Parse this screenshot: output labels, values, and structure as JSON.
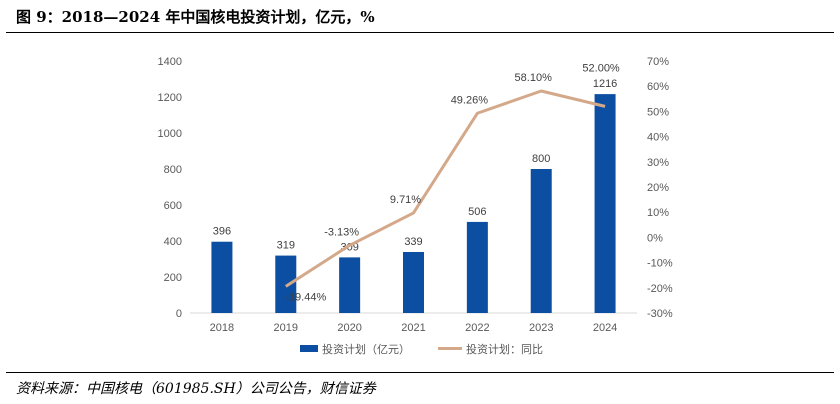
{
  "header": {
    "title": "图 9：2018—2024 年中国核电投资计划，亿元，%"
  },
  "footer": {
    "source": "资料来源：中国核电（601985.SH）公司公告，财信证券"
  },
  "chart_data": {
    "type": "bar",
    "categories": [
      "2018",
      "2019",
      "2020",
      "2021",
      "2022",
      "2023",
      "2024"
    ],
    "series": [
      {
        "name": "投资计划（亿元）",
        "type": "bar",
        "axis": "left",
        "values": [
          396,
          319,
          309,
          339,
          506,
          800,
          1216
        ],
        "labels": [
          "396",
          "319",
          "309",
          "339",
          "506",
          "800",
          "1216"
        ]
      },
      {
        "name": "投资计划：同比",
        "type": "line",
        "axis": "right",
        "values": [
          null,
          -19.44,
          -3.13,
          9.71,
          49.26,
          58.1,
          52.0
        ],
        "labels": [
          "",
          "-19.44%",
          "-3.13%",
          "9.71%",
          "49.26%",
          "58.10%",
          "52.00%"
        ]
      }
    ],
    "ylim": [
      0,
      1400
    ],
    "yticks": [
      "0",
      "200",
      "400",
      "600",
      "800",
      "1000",
      "1200",
      "1400"
    ],
    "y2lim": [
      -30,
      70
    ],
    "y2ticks": [
      "-30%",
      "-20%",
      "-10%",
      "0%",
      "10%",
      "20%",
      "30%",
      "40%",
      "50%",
      "60%",
      "70%"
    ],
    "legend_position": "bottom",
    "grid": false,
    "colors": {
      "bar": "#0B4EA2",
      "line": "#D4A98A"
    }
  }
}
